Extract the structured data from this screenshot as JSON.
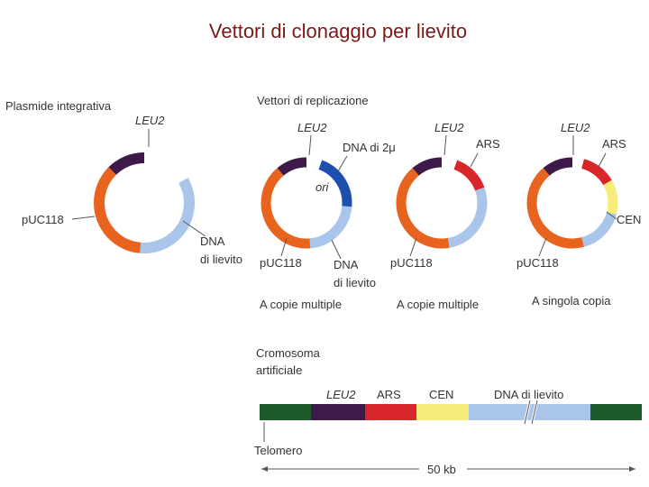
{
  "title": "Vettori di clonaggio per lievito",
  "integrative": {
    "heading": "Plasmide integrativa",
    "leu2": "LEU2",
    "puc": "pUC118",
    "dna": [
      "DNA",
      "di lievito"
    ]
  },
  "replication": {
    "heading": "Vettori di replicazione",
    "plasmids": [
      {
        "leu2": "LEU2",
        "marker": "DNA di 2μ",
        "ori": "ori",
        "puc": "pUC118",
        "dna": [
          "DNA",
          "di lievito"
        ],
        "caption": "A copie multiple"
      },
      {
        "leu2": "LEU2",
        "ars": "ARS",
        "puc": "pUC118",
        "caption": "A copie multiple"
      },
      {
        "leu2": "LEU2",
        "ars": "ARS",
        "cen": "CEN",
        "puc": "pUC118",
        "caption": "A singola copia"
      }
    ]
  },
  "chromosome": {
    "heading": [
      "Cromosoma",
      "artificiale"
    ],
    "leu2": "LEU2",
    "ars": "ARS",
    "cen": "CEN",
    "dna": "DNA di lievito",
    "telomere": "Telomero",
    "scale": "50 kb"
  }
}
